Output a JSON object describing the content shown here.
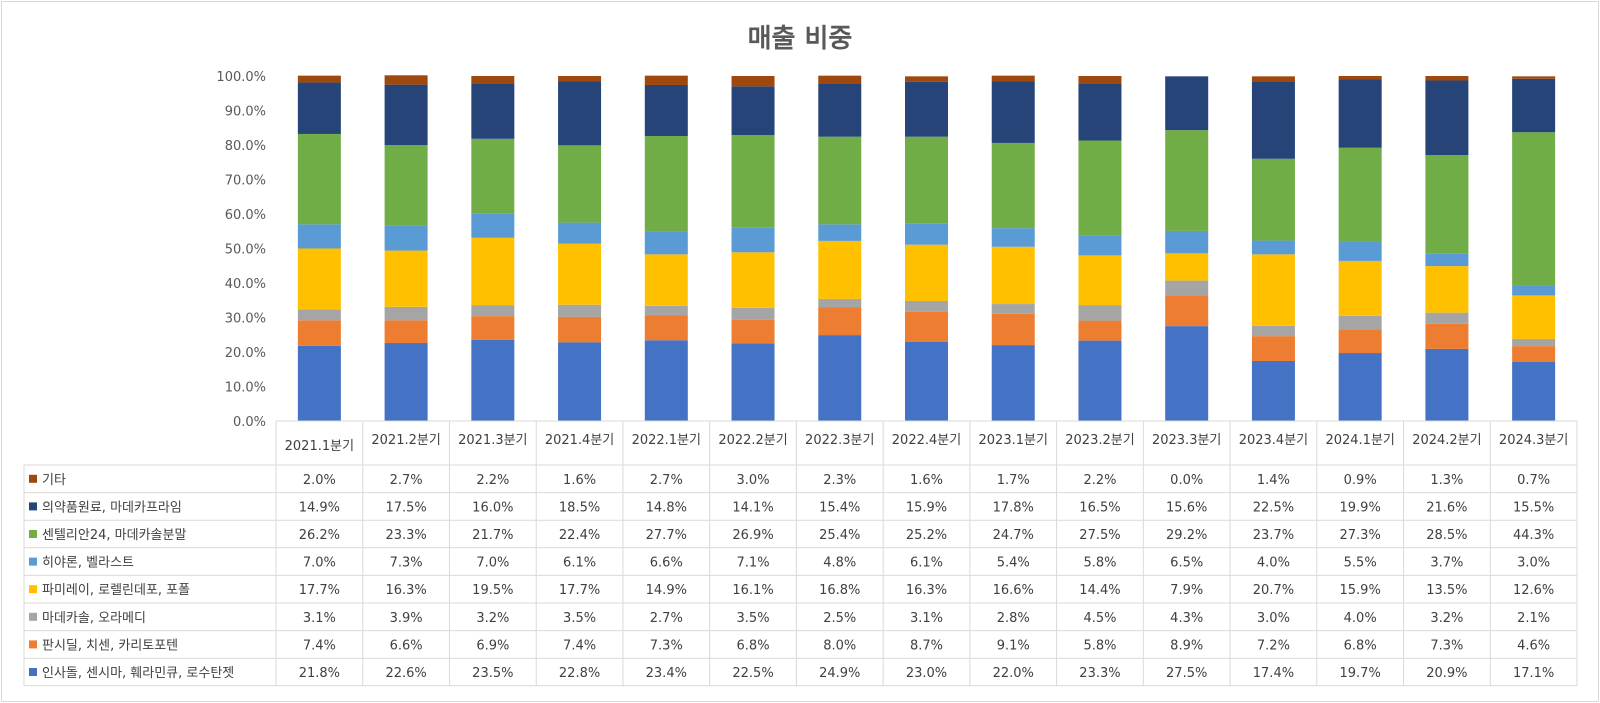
{
  "chart_data": {
    "type": "bar",
    "stacked": true,
    "percent_stacked": true,
    "title": "매출 비중",
    "categories": [
      "2021.1분기",
      "2021.2분기",
      "2021.3분기",
      "2021.4분기",
      "2022.1분기",
      "2022.2분기",
      "2022.3분기",
      "2022.4분기",
      "2023.1분기",
      "2023.2분기",
      "2023.3분기",
      "2023.4분기",
      "2024.1분기",
      "2024.2분기",
      "2024.3분기"
    ],
    "y_ticks": [
      "0.0%",
      "10.0%",
      "20.0%",
      "30.0%",
      "40.0%",
      "50.0%",
      "60.0%",
      "70.0%",
      "80.0%",
      "90.0%",
      "100.0%"
    ],
    "ylim": [
      0,
      100
    ],
    "grid": false,
    "legend": "data-table",
    "series": [
      {
        "name": "인사돌, 센시마, 훼라민큐, 로수탄젯",
        "color": "#4472C4",
        "values": [
          21.8,
          22.6,
          23.5,
          22.8,
          23.4,
          22.5,
          24.9,
          23.0,
          22.0,
          23.3,
          27.5,
          17.4,
          19.7,
          20.9,
          17.1
        ],
        "labels": [
          "21.8%",
          "22.6%",
          "23.5%",
          "22.8%",
          "23.4%",
          "22.5%",
          "24.9%",
          "23.0%",
          "22.0%",
          "23.3%",
          "27.5%",
          "17.4%",
          "19.7%",
          "20.9%",
          "17.1%"
        ]
      },
      {
        "name": "판시딜, 치센, 카리토포텐",
        "color": "#ED7D31",
        "values": [
          7.4,
          6.6,
          6.9,
          7.4,
          7.3,
          6.8,
          8.0,
          8.7,
          9.1,
          5.8,
          8.9,
          7.2,
          6.8,
          7.3,
          4.6
        ],
        "labels": [
          "7.4%",
          "6.6%",
          "6.9%",
          "7.4%",
          "7.3%",
          "6.8%",
          "8.0%",
          "8.7%",
          "9.1%",
          "5.8%",
          "8.9%",
          "7.2%",
          "6.8%",
          "7.3%",
          "4.6%"
        ]
      },
      {
        "name": "마데카솔, 오라메디",
        "color": "#A5A5A5",
        "values": [
          3.1,
          3.9,
          3.2,
          3.5,
          2.7,
          3.5,
          2.5,
          3.1,
          2.8,
          4.5,
          4.3,
          3.0,
          4.0,
          3.2,
          2.1
        ],
        "labels": [
          "3.1%",
          "3.9%",
          "3.2%",
          "3.5%",
          "2.7%",
          "3.5%",
          "2.5%",
          "3.1%",
          "2.8%",
          "4.5%",
          "4.3%",
          "3.0%",
          "4.0%",
          "3.2%",
          "2.1%"
        ]
      },
      {
        "name": "파미레이, 로렐린데포, 포폴",
        "color": "#FFC000",
        "values": [
          17.7,
          16.3,
          19.5,
          17.7,
          14.9,
          16.1,
          16.8,
          16.3,
          16.6,
          14.4,
          7.9,
          20.7,
          15.9,
          13.5,
          12.6
        ],
        "labels": [
          "17.7%",
          "16.3%",
          "19.5%",
          "17.7%",
          "14.9%",
          "16.1%",
          "16.8%",
          "16.3%",
          "16.6%",
          "14.4%",
          "7.9%",
          "20.7%",
          "15.9%",
          "13.5%",
          "12.6%"
        ]
      },
      {
        "name": "히야론, 벨라스트",
        "color": "#5B9BD5",
        "values": [
          7.0,
          7.3,
          7.0,
          6.1,
          6.6,
          7.1,
          4.8,
          6.1,
          5.4,
          5.8,
          6.5,
          4.0,
          5.5,
          3.7,
          3.0
        ],
        "labels": [
          "7.0%",
          "7.3%",
          "7.0%",
          "6.1%",
          "6.6%",
          "7.1%",
          "4.8%",
          "6.1%",
          "5.4%",
          "5.8%",
          "6.5%",
          "4.0%",
          "5.5%",
          "3.7%",
          "3.0%"
        ]
      },
      {
        "name": "센텔리안24, 마데카솔분말",
        "color": "#70AD47",
        "values": [
          26.2,
          23.3,
          21.7,
          22.4,
          27.7,
          26.9,
          25.4,
          25.2,
          24.7,
          27.5,
          29.2,
          23.7,
          27.3,
          28.5,
          44.3
        ],
        "labels": [
          "26.2%",
          "23.3%",
          "21.7%",
          "22.4%",
          "27.7%",
          "26.9%",
          "25.4%",
          "25.2%",
          "24.7%",
          "27.5%",
          "29.2%",
          "23.7%",
          "27.3%",
          "28.5%",
          "44.3%"
        ]
      },
      {
        "name": "의약품원료, 마데카프라임",
        "color": "#264478",
        "values": [
          14.9,
          17.5,
          16.0,
          18.5,
          14.8,
          14.1,
          15.4,
          15.9,
          17.8,
          16.5,
          15.6,
          22.5,
          19.9,
          21.6,
          15.5
        ],
        "labels": [
          "14.9%",
          "17.5%",
          "16.0%",
          "18.5%",
          "14.8%",
          "14.1%",
          "15.4%",
          "15.9%",
          "17.8%",
          "16.5%",
          "15.6%",
          "22.5%",
          "19.9%",
          "21.6%",
          "15.5%"
        ]
      },
      {
        "name": "기타",
        "color": "#9E480E",
        "values": [
          2.0,
          2.7,
          2.2,
          1.6,
          2.7,
          3.0,
          2.3,
          1.6,
          1.7,
          2.2,
          0.0,
          1.4,
          0.9,
          1.3,
          0.7
        ],
        "labels": [
          "2.0%",
          "2.7%",
          "2.2%",
          "1.6%",
          "2.7%",
          "3.0%",
          "2.3%",
          "1.6%",
          "1.7%",
          "2.2%",
          "0.0%",
          "1.4%",
          "0.9%",
          "1.3%",
          "0.7%"
        ]
      }
    ]
  }
}
